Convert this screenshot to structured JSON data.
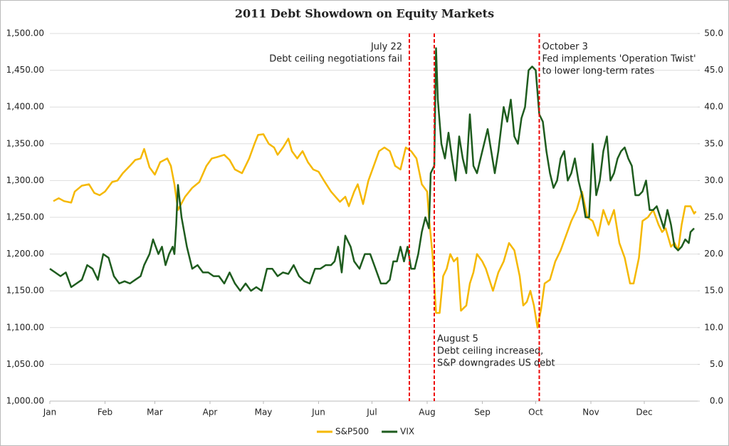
{
  "chart_data": {
    "type": "line",
    "title": "2011 Debt Showdown on Equity Markets",
    "xlim": [
      0,
      364
    ],
    "xticks": [
      {
        "value": 0,
        "label": "Jan"
      },
      {
        "value": 31,
        "label": "Feb"
      },
      {
        "value": 59,
        "label": "Mar"
      },
      {
        "value": 90,
        "label": "Apr"
      },
      {
        "value": 120,
        "label": "May"
      },
      {
        "value": 151,
        "label": "Jun"
      },
      {
        "value": 181,
        "label": "Jul"
      },
      {
        "value": 212,
        "label": "Aug"
      },
      {
        "value": 243,
        "label": "Sep"
      },
      {
        "value": 273,
        "label": "Oct"
      },
      {
        "value": 304,
        "label": "Nov"
      },
      {
        "value": 334,
        "label": "Dec"
      }
    ],
    "ylim": [
      1000,
      1500
    ],
    "yticks": [
      {
        "value": 1000,
        "label": "1,000.00"
      },
      {
        "value": 1050,
        "label": "1,050.00"
      },
      {
        "value": 1100,
        "label": "1,100.00"
      },
      {
        "value": 1150,
        "label": "1,150.00"
      },
      {
        "value": 1200,
        "label": "1,200.00"
      },
      {
        "value": 1250,
        "label": "1,250.00"
      },
      {
        "value": 1300,
        "label": "1,300.00"
      },
      {
        "value": 1350,
        "label": "1,350.00"
      },
      {
        "value": 1400,
        "label": "1,400.00"
      },
      {
        "value": 1450,
        "label": "1,450.00"
      },
      {
        "value": 1500,
        "label": "1,500.00"
      }
    ],
    "y2lim": [
      0,
      50
    ],
    "y2ticks": [
      {
        "value": 0,
        "label": "0.0"
      },
      {
        "value": 5,
        "label": "5.0"
      },
      {
        "value": 10,
        "label": "10.0"
      },
      {
        "value": 15,
        "label": "15.0"
      },
      {
        "value": 20,
        "label": "20.0"
      },
      {
        "value": 25,
        "label": "25.0"
      },
      {
        "value": 30,
        "label": "30.0"
      },
      {
        "value": 35,
        "label": "35.0"
      },
      {
        "value": 40,
        "label": "40.0"
      },
      {
        "value": 45,
        "label": "45.0"
      },
      {
        "value": 50,
        "label": "50.0"
      }
    ],
    "grid": true,
    "series": [
      {
        "name": "S&P500",
        "color": "#f5b800",
        "x": [
          2,
          5,
          8,
          12,
          14,
          18,
          22,
          25,
          28,
          31,
          35,
          38,
          41,
          45,
          48,
          51,
          53,
          56,
          59,
          62,
          66,
          68,
          70,
          72,
          76,
          80,
          84,
          88,
          91,
          94,
          98,
          101,
          104,
          108,
          112,
          115,
          117,
          120,
          123,
          126,
          128,
          131,
          134,
          136,
          139,
          142,
          145,
          148,
          151,
          154,
          158,
          163,
          166,
          168,
          171,
          173,
          176,
          179,
          182,
          185,
          188,
          191,
          194,
          197,
          200,
          203,
          206,
          209,
          212,
          213,
          215,
          217,
          219,
          221,
          223,
          225,
          227,
          229,
          231,
          234,
          236,
          238,
          240,
          243,
          245,
          247,
          249,
          252,
          255,
          258,
          261,
          264,
          266,
          268,
          270,
          272,
          274,
          276,
          278,
          281,
          284,
          287,
          290,
          293,
          296,
          299,
          302,
          305,
          308,
          311,
          314,
          317,
          320,
          323,
          326,
          328,
          331,
          333,
          336,
          339,
          342,
          344,
          346,
          349,
          351,
          353,
          355,
          357,
          360,
          362,
          363
        ],
        "values": [
          1272,
          1276,
          1272,
          1270,
          1285,
          1293,
          1295,
          1283,
          1280,
          1285,
          1298,
          1300,
          1310,
          1320,
          1328,
          1330,
          1343,
          1318,
          1308,
          1325,
          1330,
          1320,
          1295,
          1260,
          1278,
          1290,
          1298,
          1320,
          1330,
          1332,
          1335,
          1328,
          1315,
          1310,
          1330,
          1350,
          1362,
          1363,
          1350,
          1345,
          1335,
          1345,
          1357,
          1340,
          1330,
          1340,
          1325,
          1315,
          1312,
          1300,
          1285,
          1271,
          1278,
          1265,
          1285,
          1295,
          1268,
          1300,
          1320,
          1340,
          1345,
          1340,
          1320,
          1315,
          1345,
          1340,
          1330,
          1295,
          1285,
          1250,
          1200,
          1120,
          1120,
          1170,
          1180,
          1200,
          1190,
          1195,
          1123,
          1130,
          1160,
          1175,
          1200,
          1190,
          1180,
          1165,
          1150,
          1175,
          1190,
          1215,
          1205,
          1170,
          1130,
          1135,
          1150,
          1130,
          1100,
          1125,
          1160,
          1165,
          1190,
          1205,
          1225,
          1245,
          1260,
          1285,
          1250,
          1245,
          1225,
          1260,
          1240,
          1260,
          1215,
          1195,
          1160,
          1160,
          1195,
          1245,
          1250,
          1260,
          1240,
          1230,
          1235,
          1210,
          1215,
          1205,
          1240,
          1265,
          1265,
          1255,
          1258
        ]
      },
      {
        "name": "VIX",
        "color": "#1e5c1e",
        "axis": "y2",
        "x": [
          0,
          3,
          6,
          9,
          12,
          15,
          18,
          21,
          24,
          27,
          30,
          33,
          36,
          39,
          42,
          45,
          48,
          51,
          53,
          56,
          58,
          61,
          63,
          65,
          67,
          69,
          70,
          71,
          72,
          74,
          77,
          80,
          83,
          86,
          89,
          92,
          95,
          98,
          101,
          104,
          107,
          110,
          113,
          116,
          119,
          122,
          125,
          128,
          131,
          134,
          137,
          140,
          143,
          146,
          149,
          152,
          155,
          158,
          160,
          162,
          164,
          166,
          169,
          171,
          174,
          177,
          180,
          183,
          186,
          189,
          191,
          193,
          195,
          197,
          199,
          201,
          203,
          205,
          207,
          209,
          211,
          213,
          214,
          216,
          217,
          218,
          220,
          222,
          224,
          226,
          228,
          230,
          232,
          234,
          236,
          238,
          240,
          242,
          244,
          246,
          248,
          250,
          252,
          255,
          257,
          259,
          261,
          263,
          265,
          267,
          269,
          271,
          273,
          275,
          277,
          279,
          281,
          283,
          285,
          287,
          289,
          291,
          293,
          295,
          297,
          299,
          301,
          303,
          305,
          307,
          309,
          311,
          313,
          315,
          317,
          319,
          321,
          323,
          325,
          327,
          329,
          331,
          333,
          335,
          337,
          339,
          341,
          343,
          345,
          347,
          349,
          351,
          353,
          355,
          357,
          359,
          360,
          362
        ],
        "values": [
          18,
          17.5,
          17,
          17.5,
          15.5,
          16,
          16.5,
          18.5,
          18,
          16.5,
          20,
          19.5,
          17,
          16,
          16.3,
          16,
          16.5,
          17,
          18.5,
          20,
          22,
          20,
          21,
          18.5,
          20,
          21,
          20,
          24,
          29.4,
          25,
          21,
          18,
          18.5,
          17.5,
          17.5,
          17,
          17,
          16,
          17.5,
          16,
          15,
          16,
          15,
          15.5,
          15,
          18,
          18,
          17,
          17.5,
          17.3,
          18.5,
          17,
          16.3,
          16,
          18,
          18,
          18.5,
          18.5,
          19,
          21,
          17.5,
          22.5,
          21,
          19,
          18,
          20,
          20,
          18,
          16,
          16,
          16.5,
          19,
          19,
          21,
          19,
          21,
          18,
          18,
          20,
          23,
          25,
          23.5,
          31,
          32,
          48,
          41,
          35,
          33,
          36.5,
          33,
          30,
          36,
          33,
          31,
          39,
          32,
          31,
          33,
          35,
          37,
          34,
          31,
          34,
          40,
          38,
          41,
          36,
          35,
          38.5,
          40,
          45,
          45.5,
          45,
          39,
          38,
          34,
          31,
          29,
          30,
          33,
          34,
          30,
          31,
          33,
          30,
          28,
          25,
          25,
          35,
          28,
          30,
          34,
          36,
          30,
          31,
          33,
          34,
          34.5,
          33,
          32,
          28,
          28,
          28.5,
          30,
          26,
          26,
          26.5,
          25,
          23.5,
          26,
          24,
          21,
          20.5,
          21,
          22,
          21.5,
          23,
          23.5
        ]
      }
    ],
    "annotations": [
      {
        "x": 202,
        "lines": [
          "July 22",
          "Debt ceiling negotiations fail"
        ]
      },
      {
        "x": 216,
        "lines": [
          "August 5",
          "Debt ceiling increased,",
          "S&P downgrades US debt"
        ]
      },
      {
        "x": 275,
        "lines": [
          "October 3",
          "Fed implements 'Operation Twist'",
          "to lower long-term rates"
        ]
      }
    ]
  }
}
